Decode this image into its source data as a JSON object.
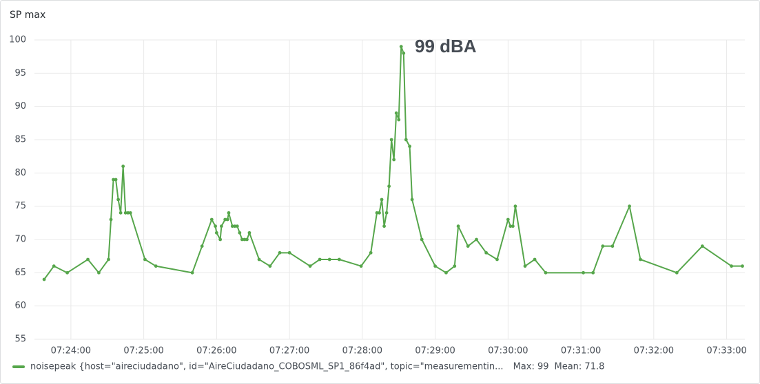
{
  "chart_data": {
    "type": "line",
    "title": "SP max",
    "annotation": "99 dBA",
    "annotation_color": "#e02f2f",
    "grid": true,
    "xlim": [
      "07:23:30",
      "07:33:15"
    ],
    "xticks": [
      "07:24:00",
      "07:25:00",
      "07:26:00",
      "07:27:00",
      "07:28:00",
      "07:29:00",
      "07:30:00",
      "07:31:00",
      "07:32:00",
      "07:33:00"
    ],
    "ylim": [
      55,
      100
    ],
    "yticks": [
      55,
      60,
      65,
      70,
      75,
      80,
      85,
      90,
      95,
      100
    ],
    "x": [
      "07:23:38",
      "07:23:46",
      "07:23:57",
      "07:24:14",
      "07:24:23",
      "07:24:31",
      "07:24:33",
      "07:24:35",
      "07:24:37",
      "07:24:39",
      "07:24:41",
      "07:24:43",
      "07:24:45",
      "07:24:47",
      "07:24:49",
      "07:25:01",
      "07:25:10",
      "07:25:40",
      "07:25:48",
      "07:25:56",
      "07:25:59",
      "07:26:00",
      "07:26:03",
      "07:26:04",
      "07:26:07",
      "07:26:09",
      "07:26:10",
      "07:26:13",
      "07:26:15",
      "07:26:17",
      "07:26:19",
      "07:26:21",
      "07:26:23",
      "07:26:25",
      "07:26:27",
      "07:26:35",
      "07:26:44",
      "07:26:52",
      "07:27:00",
      "07:27:17",
      "07:27:25",
      "07:27:33",
      "07:27:41",
      "07:27:59",
      "07:28:07",
      "07:28:12",
      "07:28:14",
      "07:28:16",
      "07:28:18",
      "07:28:20",
      "07:28:22",
      "07:28:24",
      "07:28:26",
      "07:28:28",
      "07:28:30",
      "07:28:32",
      "07:28:34",
      "07:28:36",
      "07:28:39",
      "07:28:41",
      "07:28:49",
      "07:29:00",
      "07:29:09",
      "07:29:16",
      "07:29:19",
      "07:29:27",
      "07:29:34",
      "07:29:42",
      "07:29:51",
      "07:30:00",
      "07:30:02",
      "07:30:04",
      "07:30:06",
      "07:30:14",
      "07:30:22",
      "07:30:31",
      "07:31:02",
      "07:31:10",
      "07:31:18",
      "07:31:26",
      "07:31:40",
      "07:31:49",
      "07:32:19",
      "07:32:40",
      "07:33:04",
      "07:33:13"
    ],
    "series": [
      {
        "name": "noisepeak {host=\"aireciudadano\", id=\"AireCiudadano_COBOSML_SP1_86f4ad\", topic=\"measurementin...",
        "color": "#56a64b",
        "values": [
          64,
          66,
          65,
          67,
          65,
          67,
          73,
          79,
          79,
          76,
          74,
          81,
          74,
          74,
          74,
          67,
          66,
          65,
          69,
          73,
          72,
          71,
          70,
          72,
          73,
          73,
          74,
          72,
          72,
          72,
          71,
          70,
          70,
          70,
          71,
          67,
          66,
          68,
          68,
          66,
          67,
          67,
          67,
          66,
          68,
          74,
          74,
          76,
          72,
          74,
          78,
          85,
          82,
          89,
          88,
          99,
          98,
          85,
          84,
          76,
          70,
          66,
          65,
          66,
          72,
          69,
          70,
          68,
          67,
          73,
          72,
          72,
          75,
          66,
          67,
          65,
          65,
          65,
          69,
          69,
          75,
          67,
          65,
          69,
          66,
          66
        ]
      }
    ],
    "legend_stats": [
      "Max: 99",
      "Mean: 71.8"
    ]
  }
}
